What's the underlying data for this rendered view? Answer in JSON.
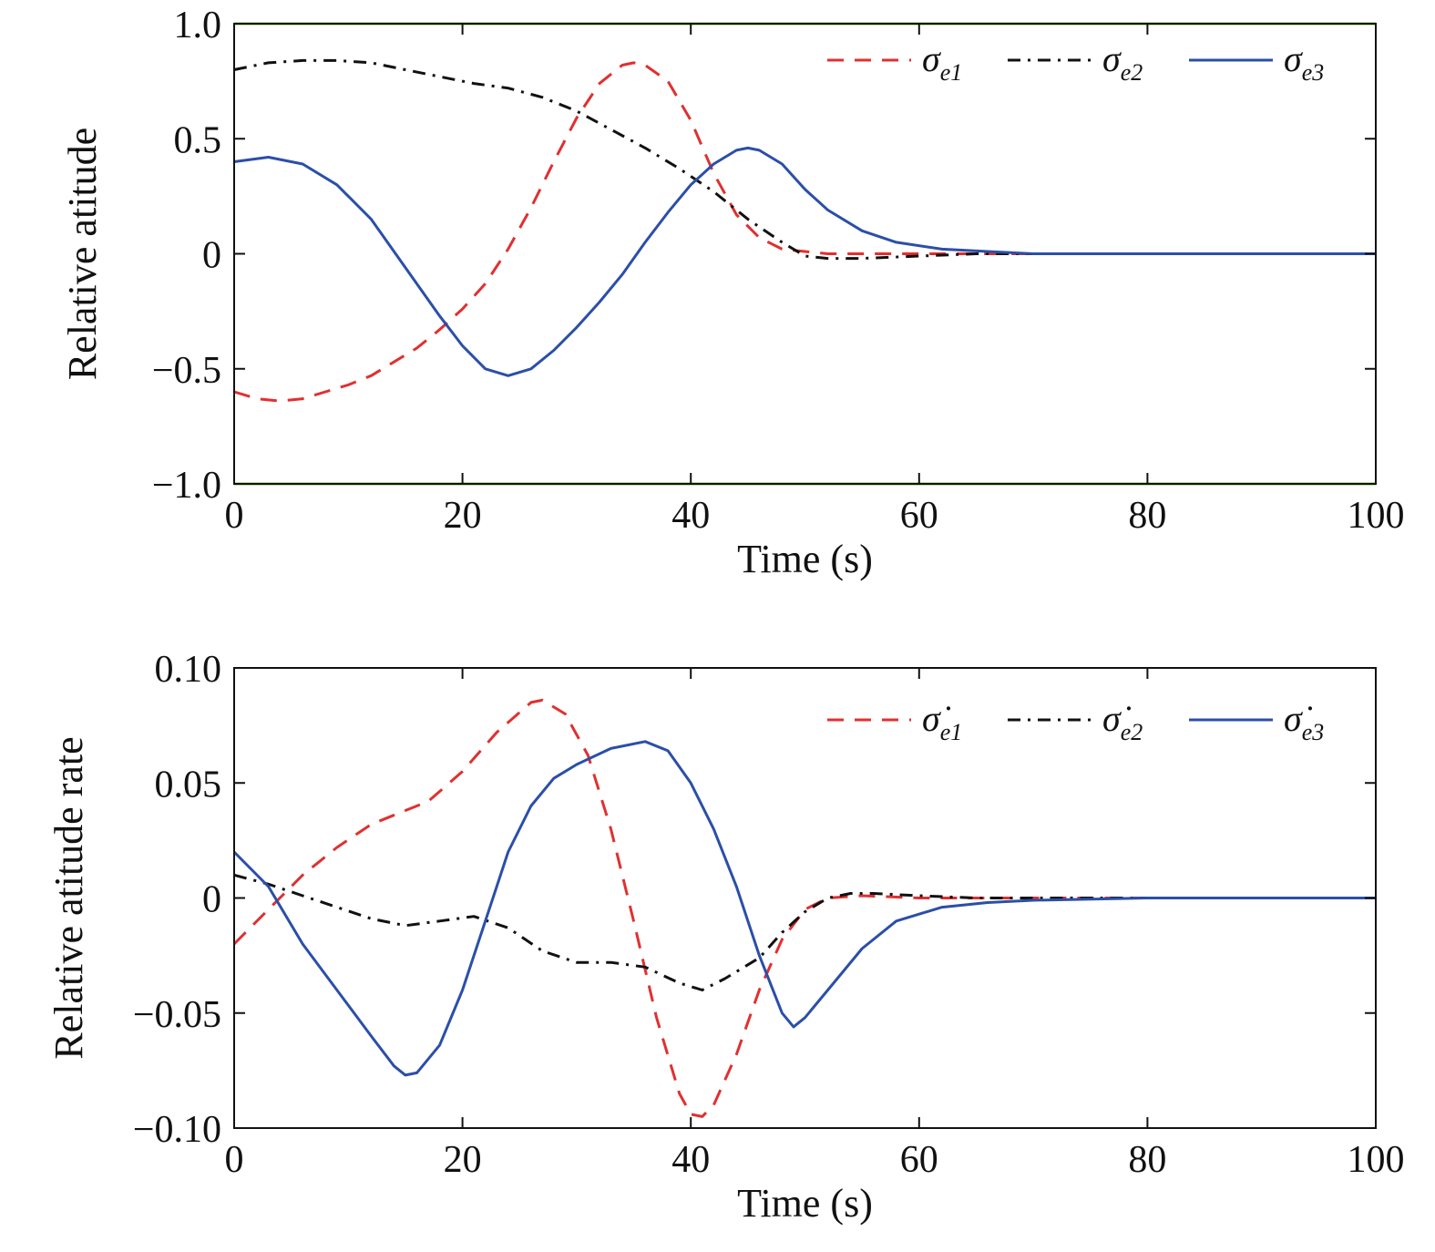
{
  "chart_data": [
    {
      "type": "line",
      "xlabel": "Time (s)",
      "ylabel": "Relative atitude",
      "xlim": [
        0,
        100
      ],
      "ylim": [
        -1.0,
        1.0
      ],
      "x_ticks": [
        "0",
        "20",
        "40",
        "60",
        "80",
        "100"
      ],
      "y_ticks": [
        "−1.0",
        "−0.5",
        "0",
        "0.5",
        "1.0"
      ],
      "legend_position": "top-right",
      "grid": false,
      "bounds": {
        "values": [
          1.0,
          -1.0
        ],
        "color": "#7ac143"
      },
      "series": [
        {
          "name": "σe1",
          "symbol": "σ",
          "subscript": "e1",
          "color": "#e03030",
          "dash": "18,12",
          "x": [
            0,
            2,
            4,
            6,
            8,
            10,
            12,
            14,
            16,
            18,
            20,
            22,
            24,
            26,
            28,
            30,
            32,
            34,
            35,
            36,
            38,
            40,
            42,
            44,
            46,
            48,
            50,
            52,
            55,
            60,
            65,
            70,
            80,
            90,
            100
          ],
          "y": [
            -0.6,
            -0.63,
            -0.64,
            -0.63,
            -0.6,
            -0.57,
            -0.53,
            -0.47,
            -0.41,
            -0.33,
            -0.24,
            -0.13,
            0.02,
            0.2,
            0.4,
            0.59,
            0.74,
            0.82,
            0.83,
            0.82,
            0.75,
            0.58,
            0.35,
            0.17,
            0.07,
            0.02,
            0.01,
            0,
            0,
            0,
            0,
            0,
            0,
            0,
            0
          ]
        },
        {
          "name": "σe2",
          "symbol": "σ",
          "subscript": "e2",
          "color": "#111111",
          "dash": "14,8,3,8",
          "x": [
            0,
            3,
            6,
            9,
            12,
            15,
            18,
            21,
            24,
            27,
            30,
            33,
            36,
            39,
            42,
            45,
            48,
            50,
            52,
            55,
            60,
            65,
            70,
            80,
            90,
            100
          ],
          "y": [
            0.8,
            0.83,
            0.84,
            0.84,
            0.83,
            0.8,
            0.77,
            0.74,
            0.72,
            0.68,
            0.62,
            0.54,
            0.46,
            0.37,
            0.27,
            0.15,
            0.05,
            -0.01,
            -0.02,
            -0.02,
            -0.01,
            0,
            0,
            0,
            0,
            0
          ]
        },
        {
          "name": "σe3",
          "symbol": "σ",
          "subscript": "e3",
          "color": "#2b4fa8",
          "dash": "",
          "x": [
            0,
            3,
            6,
            9,
            12,
            15,
            18,
            20,
            22,
            24,
            26,
            28,
            30,
            32,
            34,
            36,
            38,
            40,
            42,
            44,
            45,
            46,
            48,
            50,
            52,
            55,
            58,
            62,
            66,
            70,
            80,
            90,
            100
          ],
          "y": [
            0.4,
            0.42,
            0.39,
            0.3,
            0.15,
            -0.06,
            -0.27,
            -0.4,
            -0.5,
            -0.53,
            -0.5,
            -0.42,
            -0.32,
            -0.21,
            -0.09,
            0.05,
            0.18,
            0.3,
            0.39,
            0.45,
            0.46,
            0.45,
            0.39,
            0.28,
            0.19,
            0.1,
            0.05,
            0.02,
            0.01,
            0,
            0,
            0,
            0
          ]
        }
      ]
    },
    {
      "type": "line",
      "xlabel": "Time (s)",
      "ylabel": "Relative atitude rate",
      "xlim": [
        0,
        100
      ],
      "ylim": [
        -0.1,
        0.1
      ],
      "x_ticks": [
        "0",
        "20",
        "40",
        "60",
        "80",
        "100"
      ],
      "y_ticks": [
        "−0.10",
        "−0.05",
        "0",
        "0.05",
        "0.10"
      ],
      "legend_position": "top-right",
      "grid": false,
      "series": [
        {
          "name": "σ̇e1",
          "symbol": "σ̇",
          "subscript": "e1",
          "color": "#e03030",
          "dash": "18,12",
          "x": [
            0,
            3,
            6,
            9,
            12,
            15,
            17,
            20,
            23,
            26,
            27,
            29,
            31,
            33,
            35,
            37,
            39,
            40,
            41,
            42,
            44,
            46,
            48,
            50,
            52,
            55,
            60,
            70,
            80,
            90,
            100
          ],
          "y": [
            -0.02,
            -0.005,
            0.01,
            0.022,
            0.032,
            0.038,
            0.042,
            0.055,
            0.072,
            0.085,
            0.086,
            0.08,
            0.062,
            0.03,
            -0.01,
            -0.052,
            -0.085,
            -0.094,
            -0.095,
            -0.09,
            -0.068,
            -0.04,
            -0.018,
            -0.005,
            0,
            0.001,
            0,
            0,
            0,
            0,
            0
          ]
        },
        {
          "name": "σ̇e2",
          "symbol": "σ̇",
          "subscript": "e2",
          "color": "#111111",
          "dash": "14,8,3,8",
          "x": [
            0,
            3,
            6,
            9,
            12,
            15,
            18,
            21,
            24,
            27,
            30,
            33,
            36,
            39,
            41,
            43,
            46,
            48,
            50,
            52,
            54,
            56,
            60,
            65,
            70,
            80,
            90,
            100
          ],
          "y": [
            0.01,
            0.006,
            0.001,
            -0.004,
            -0.009,
            -0.012,
            -0.01,
            -0.008,
            -0.013,
            -0.023,
            -0.028,
            -0.028,
            -0.03,
            -0.037,
            -0.04,
            -0.035,
            -0.026,
            -0.015,
            -0.006,
            0,
            0.002,
            0.002,
            0.001,
            0,
            0,
            0,
            0,
            0
          ]
        },
        {
          "name": "σ̇e3",
          "symbol": "σ̇",
          "subscript": "e3",
          "color": "#2b4fa8",
          "dash": "",
          "x": [
            0,
            3,
            6,
            9,
            12,
            14,
            15,
            16,
            18,
            20,
            22,
            24,
            26,
            28,
            30,
            33,
            36,
            38,
            40,
            42,
            44,
            46,
            48,
            49,
            50,
            52,
            55,
            58,
            62,
            66,
            70,
            80,
            90,
            100
          ],
          "y": [
            0.02,
            0.005,
            -0.02,
            -0.04,
            -0.06,
            -0.073,
            -0.077,
            -0.076,
            -0.064,
            -0.04,
            -0.01,
            0.02,
            0.04,
            0.052,
            0.058,
            0.065,
            0.068,
            0.064,
            0.05,
            0.03,
            0.005,
            -0.025,
            -0.05,
            -0.056,
            -0.052,
            -0.04,
            -0.022,
            -0.01,
            -0.004,
            -0.002,
            -0.001,
            0,
            0,
            0
          ]
        }
      ]
    }
  ]
}
